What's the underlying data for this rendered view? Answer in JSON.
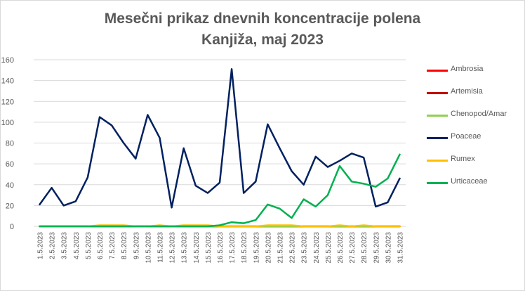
{
  "chart_data": {
    "type": "line",
    "title": [
      "Mesečni prikaz dnevnih koncentracije polena",
      "Kanjiža, maj 2023"
    ],
    "xlabel": "",
    "ylabel": "",
    "ylim": [
      0,
      160
    ],
    "yticks": [
      0,
      20,
      40,
      60,
      80,
      100,
      120,
      140,
      160
    ],
    "grid": true,
    "legend_position": "right",
    "categories": [
      "1.5.2023",
      "2.5.2023",
      "3.5.2023",
      "4.5.2023",
      "5.5.2023",
      "6.5.2023",
      "7.5.2023",
      "8.5.2023",
      "9.5.2023",
      "10.5.2023",
      "11.5.2023",
      "12.5.2023",
      "13.5.2023",
      "14.5.2023",
      "15.5.2023",
      "16.5.2023",
      "17.5.2023",
      "18.5.2023",
      "19.5.2023",
      "20.5.2023",
      "21.5.2023",
      "22.5.2023",
      "23.5.2023",
      "24.5.2023",
      "25.5.2023",
      "26.5.2023",
      "27.5.2023",
      "28.5.2023",
      "29.5.2023",
      "30.5.2023",
      "31.5.2023"
    ],
    "series": [
      {
        "name": "Ambrosia",
        "color": "#ff0000",
        "values": [
          0,
          0,
          0,
          0,
          0,
          0,
          0,
          0,
          0,
          0,
          0,
          0,
          0,
          0,
          0,
          0,
          0,
          0,
          0,
          0,
          0,
          0,
          0,
          0,
          0,
          0,
          0,
          0,
          0,
          0,
          0
        ]
      },
      {
        "name": "Artemisia",
        "color": "#c00000",
        "values": [
          0,
          0,
          0,
          0,
          0,
          0,
          0,
          0,
          0,
          0,
          0,
          0,
          0,
          0,
          0,
          0,
          0,
          0,
          0,
          0,
          0,
          0,
          0,
          0,
          0,
          0,
          0,
          0,
          0,
          0,
          0
        ]
      },
      {
        "name": "Chenopod/Amar",
        "color": "#92d050",
        "values": [
          0,
          0,
          0,
          0,
          0,
          0,
          0,
          0,
          0,
          0,
          0,
          0,
          0,
          0,
          0,
          0,
          0,
          0,
          0,
          0,
          0,
          0,
          0,
          0,
          0,
          0,
          0,
          0,
          0,
          0,
          0
        ]
      },
      {
        "name": "Poaceae",
        "color": "#002060",
        "values": [
          21,
          37,
          20,
          24,
          47,
          105,
          97,
          80,
          65,
          107,
          85,
          18,
          75,
          39,
          32,
          42,
          151,
          32,
          43,
          98,
          75,
          53,
          40,
          67,
          57,
          63,
          70,
          66,
          19,
          23,
          46
        ]
      },
      {
        "name": "Rumex",
        "color": "#ffc000",
        "values": [
          0,
          0,
          0,
          0,
          0,
          1,
          1,
          1,
          0,
          0,
          1,
          0,
          1,
          1,
          1,
          0,
          0,
          0,
          0,
          1,
          1,
          1,
          0,
          0,
          0,
          1,
          0,
          1,
          0,
          0,
          0
        ]
      },
      {
        "name": "Urticaceae",
        "color": "#00b050",
        "values": [
          0,
          0,
          0,
          0,
          0,
          0,
          0,
          0,
          0,
          0,
          0,
          0,
          0,
          0,
          0,
          1,
          4,
          3,
          6,
          21,
          17,
          8,
          26,
          19,
          30,
          58,
          43,
          41,
          38,
          46,
          69
        ]
      }
    ]
  }
}
